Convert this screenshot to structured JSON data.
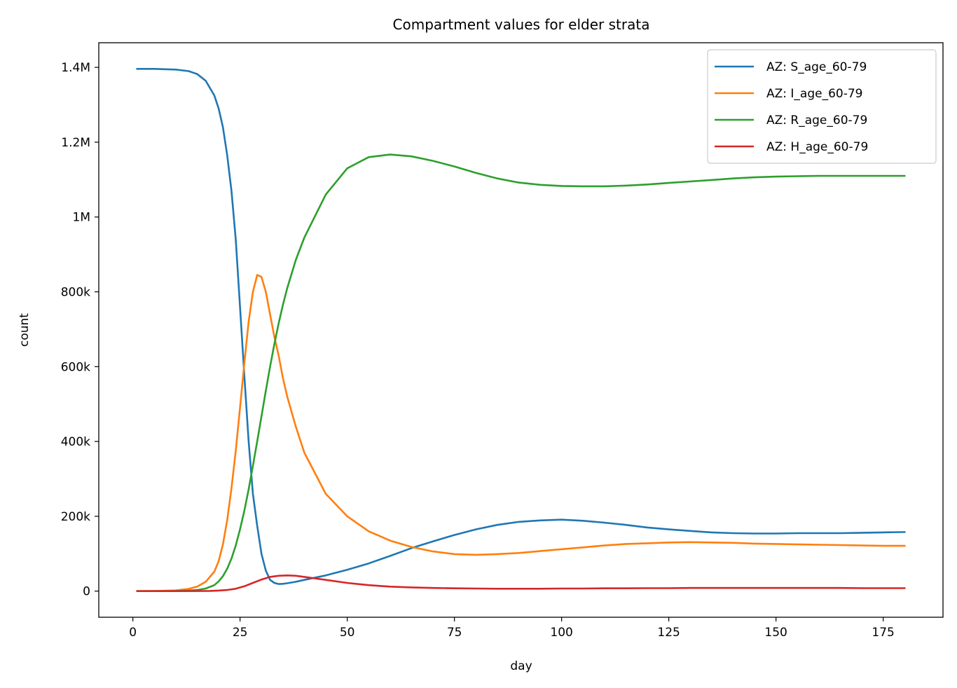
{
  "chart_data": {
    "type": "line",
    "title": "Compartment values for elder strata",
    "xlabel": "day",
    "ylabel": "count",
    "xlim": [
      -7.95,
      188.95
    ],
    "ylim": [
      -69800,
      1465800
    ],
    "xticks": [
      0,
      25,
      50,
      75,
      100,
      125,
      150,
      175
    ],
    "xtick_labels": [
      "0",
      "25",
      "50",
      "75",
      "100",
      "125",
      "150",
      "175"
    ],
    "yticks": [
      0,
      200000,
      400000,
      600000,
      800000,
      1000000,
      1200000,
      1400000
    ],
    "ytick_labels": [
      "0",
      "200k",
      "400k",
      "600k",
      "800k",
      "1M",
      "1.2M",
      "1.4M"
    ],
    "grid": false,
    "legend": "top-right",
    "series": [
      {
        "name": "AZ: S_age_60-79",
        "color": "#1f77b4",
        "x": [
          1,
          5,
          10,
          13,
          15,
          17,
          19,
          20,
          21,
          22,
          23,
          24,
          25,
          26,
          27,
          28,
          29,
          30,
          31,
          32,
          33,
          34,
          35,
          36,
          38,
          40,
          45,
          50,
          55,
          60,
          65,
          70,
          75,
          80,
          85,
          90,
          95,
          100,
          105,
          110,
          115,
          120,
          125,
          130,
          135,
          140,
          145,
          150,
          155,
          160,
          165,
          170,
          175,
          180
        ],
        "y": [
          1396000,
          1396000,
          1394000,
          1390000,
          1382000,
          1364000,
          1325000,
          1290000,
          1240000,
          1165000,
          1070000,
          940000,
          760000,
          575000,
          400000,
          260000,
          175000,
          100000,
          55000,
          30000,
          22000,
          19000,
          19500,
          21000,
          25000,
          30000,
          42000,
          57000,
          74000,
          94000,
          115000,
          133000,
          150000,
          165000,
          177000,
          185000,
          189000,
          191000,
          188000,
          183000,
          177000,
          170000,
          165000,
          161000,
          157000,
          155000,
          154000,
          154000,
          155000,
          155000,
          155000,
          156000,
          157000,
          158000
        ]
      },
      {
        "name": "AZ: I_age_60-79",
        "color": "#ff7f0e",
        "x": [
          1,
          5,
          10,
          13,
          15,
          17,
          19,
          20,
          21,
          22,
          23,
          24,
          25,
          26,
          27,
          28,
          29,
          30,
          31,
          32,
          33,
          34,
          35,
          36,
          38,
          40,
          45,
          50,
          55,
          60,
          65,
          70,
          75,
          80,
          85,
          90,
          95,
          100,
          105,
          110,
          115,
          120,
          125,
          130,
          135,
          140,
          145,
          150,
          155,
          160,
          165,
          170,
          175,
          180
        ],
        "y": [
          0,
          500,
          2000,
          6000,
          12000,
          25000,
          52000,
          80000,
          125000,
          190000,
          275000,
          375000,
          490000,
          610000,
          720000,
          800000,
          845000,
          840000,
          800000,
          740000,
          680000,
          630000,
          570000,
          520000,
          440000,
          370000,
          260000,
          200000,
          160000,
          135000,
          118000,
          106000,
          99000,
          97000,
          99000,
          102000,
          107000,
          112000,
          117000,
          122000,
          126000,
          128000,
          130000,
          131000,
          130000,
          129000,
          127000,
          126000,
          125000,
          124000,
          123000,
          122000,
          121000,
          121000
        ]
      },
      {
        "name": "AZ: R_age_60-79",
        "color": "#2ca02c",
        "x": [
          1,
          5,
          10,
          13,
          15,
          17,
          19,
          20,
          21,
          22,
          23,
          24,
          25,
          26,
          27,
          28,
          29,
          30,
          31,
          32,
          33,
          34,
          35,
          36,
          38,
          40,
          45,
          50,
          55,
          60,
          65,
          70,
          75,
          80,
          85,
          90,
          95,
          100,
          105,
          110,
          115,
          120,
          125,
          130,
          135,
          140,
          145,
          150,
          155,
          160,
          165,
          170,
          175,
          180
        ],
        "y": [
          0,
          0,
          500,
          1500,
          3000,
          7000,
          16000,
          26000,
          40000,
          60000,
          87000,
          122000,
          165000,
          215000,
          272000,
          335000,
          400000,
          467000,
          535000,
          600000,
          660000,
          715000,
          765000,
          810000,
          885000,
          945000,
          1060000,
          1130000,
          1160000,
          1167000,
          1162000,
          1150000,
          1135000,
          1118000,
          1103000,
          1092000,
          1086000,
          1083000,
          1082000,
          1082000,
          1084000,
          1087000,
          1091000,
          1095000,
          1099000,
          1103000,
          1106000,
          1108000,
          1109000,
          1110000,
          1110000,
          1110000,
          1110000,
          1110000
        ]
      },
      {
        "name": "AZ: H_age_60-79",
        "color": "#d62728",
        "x": [
          1,
          5,
          10,
          15,
          18,
          20,
          22,
          24,
          26,
          28,
          30,
          32,
          34,
          36,
          38,
          40,
          45,
          50,
          55,
          60,
          65,
          70,
          75,
          80,
          85,
          90,
          95,
          100,
          105,
          110,
          115,
          120,
          125,
          130,
          135,
          140,
          145,
          150,
          155,
          160,
          165,
          170,
          175,
          180
        ],
        "y": [
          0,
          0,
          0,
          300,
          700,
          1500,
          3000,
          6500,
          13000,
          22000,
          31000,
          38000,
          41000,
          42000,
          41000,
          38000,
          30000,
          22000,
          16000,
          12000,
          10000,
          8500,
          7500,
          7000,
          6500,
          6500,
          6500,
          7000,
          7000,
          7500,
          7500,
          8000,
          8000,
          8500,
          8500,
          8500,
          8500,
          8500,
          8500,
          8500,
          8500,
          8000,
          8000,
          8000
        ]
      }
    ]
  }
}
